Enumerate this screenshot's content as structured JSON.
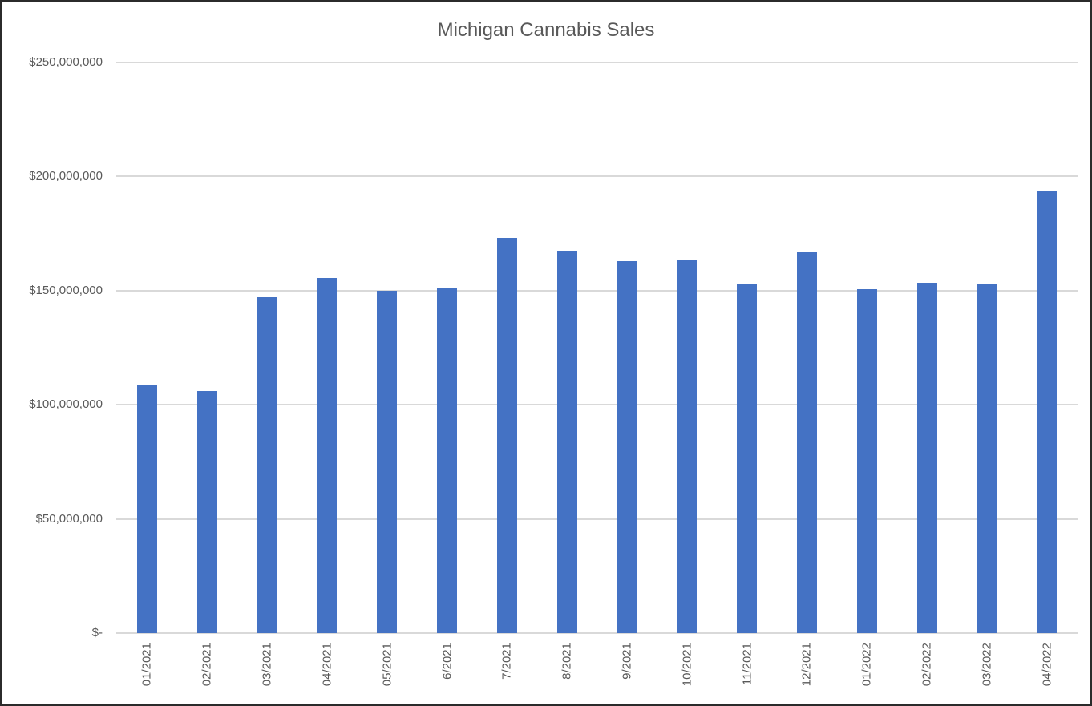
{
  "window": {
    "background": "#ffffff",
    "border_color": "#2b2b2b"
  },
  "chart_data": {
    "type": "bar",
    "title": "Michigan Cannabis Sales",
    "categories": [
      "01/2021",
      "02/2021",
      "03/2021",
      "04/2021",
      "05/2021",
      "6/2021",
      "7/2021",
      "8/2021",
      "9/2021",
      "10/2021",
      "11/2021",
      "12/2021",
      "01/2022",
      "02/2022",
      "03/2022",
      "04/2022"
    ],
    "values": [
      109000000,
      106000000,
      147500000,
      155500000,
      150000000,
      151000000,
      173000000,
      167500000,
      163000000,
      163500000,
      153000000,
      167000000,
      150500000,
      153500000,
      153000000,
      194000000
    ],
    "xlabel": "",
    "ylabel": "",
    "ylim": [
      0,
      250000000
    ],
    "y_tick_interval": 50000000,
    "y_tick_labels": [
      "$-",
      "$50,000,000",
      "$100,000,000",
      "$150,000,000",
      "$200,000,000",
      "$250,000,000"
    ],
    "grid": true,
    "legend": "none",
    "bar_color": "#4472C4",
    "gridline_color": "#D9D9D9",
    "text_color": "#595959"
  }
}
